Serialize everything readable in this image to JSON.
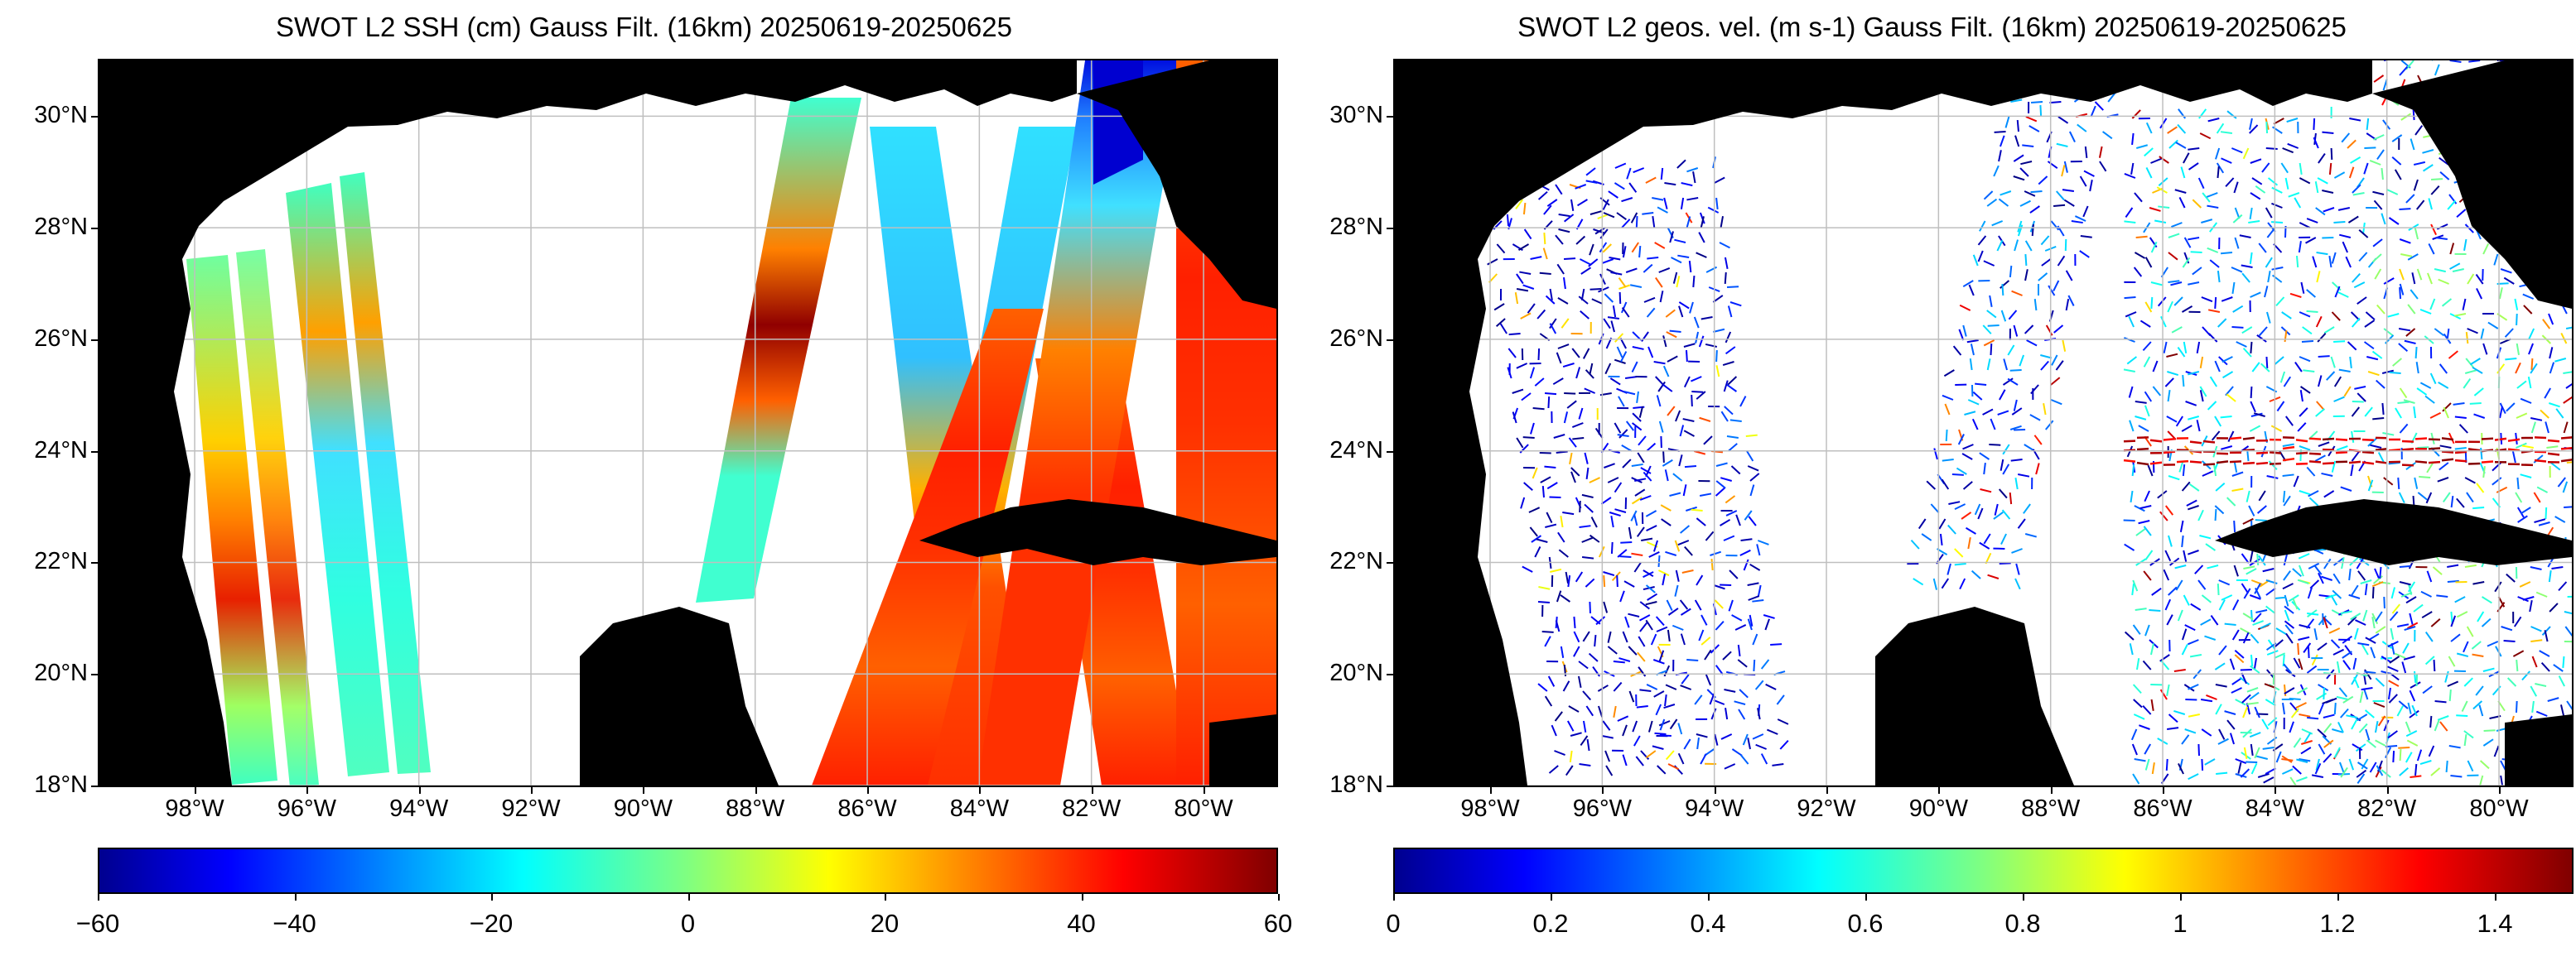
{
  "panels": [
    {
      "title": "SWOT L2 SSH (cm) Gauss Filt. (16km) 20250619-20250625",
      "colorbar": {
        "min": -60,
        "max": 60,
        "ticks": [
          "−60",
          "−40",
          "−20",
          "0",
          "20",
          "40",
          "60"
        ]
      }
    },
    {
      "title": "SWOT L2 geos. vel. (m s-1) Gauss Filt. (16km) 20250619-20250625",
      "colorbar": {
        "min": 0,
        "max": 1.5,
        "ticks": [
          "0",
          "0.2",
          "0.4",
          "0.6",
          "0.8",
          "1",
          "1.2",
          "1.4"
        ]
      }
    }
  ],
  "axes": {
    "lat_labels": [
      "30°N",
      "28°N",
      "26°N",
      "24°N",
      "22°N",
      "20°N",
      "18°N"
    ],
    "lon_labels": [
      "98°W",
      "96°W",
      "94°W",
      "92°W",
      "90°W",
      "88°W",
      "86°W",
      "84°W",
      "82°W",
      "80°W"
    ],
    "lat_values": [
      30,
      28,
      26,
      24,
      22,
      20,
      18
    ],
    "lon_values": [
      -98,
      -96,
      -94,
      -92,
      -90,
      -88,
      -86,
      -84,
      -82,
      -80
    ],
    "lat_range": [
      18,
      31
    ],
    "lon_range": [
      -99.7,
      -78.7
    ],
    "grid": true
  },
  "colormap": "jet",
  "colors": {
    "land": "#000000",
    "ocean_nodata": "#ffffff",
    "grid": "#bfbfbf"
  }
}
